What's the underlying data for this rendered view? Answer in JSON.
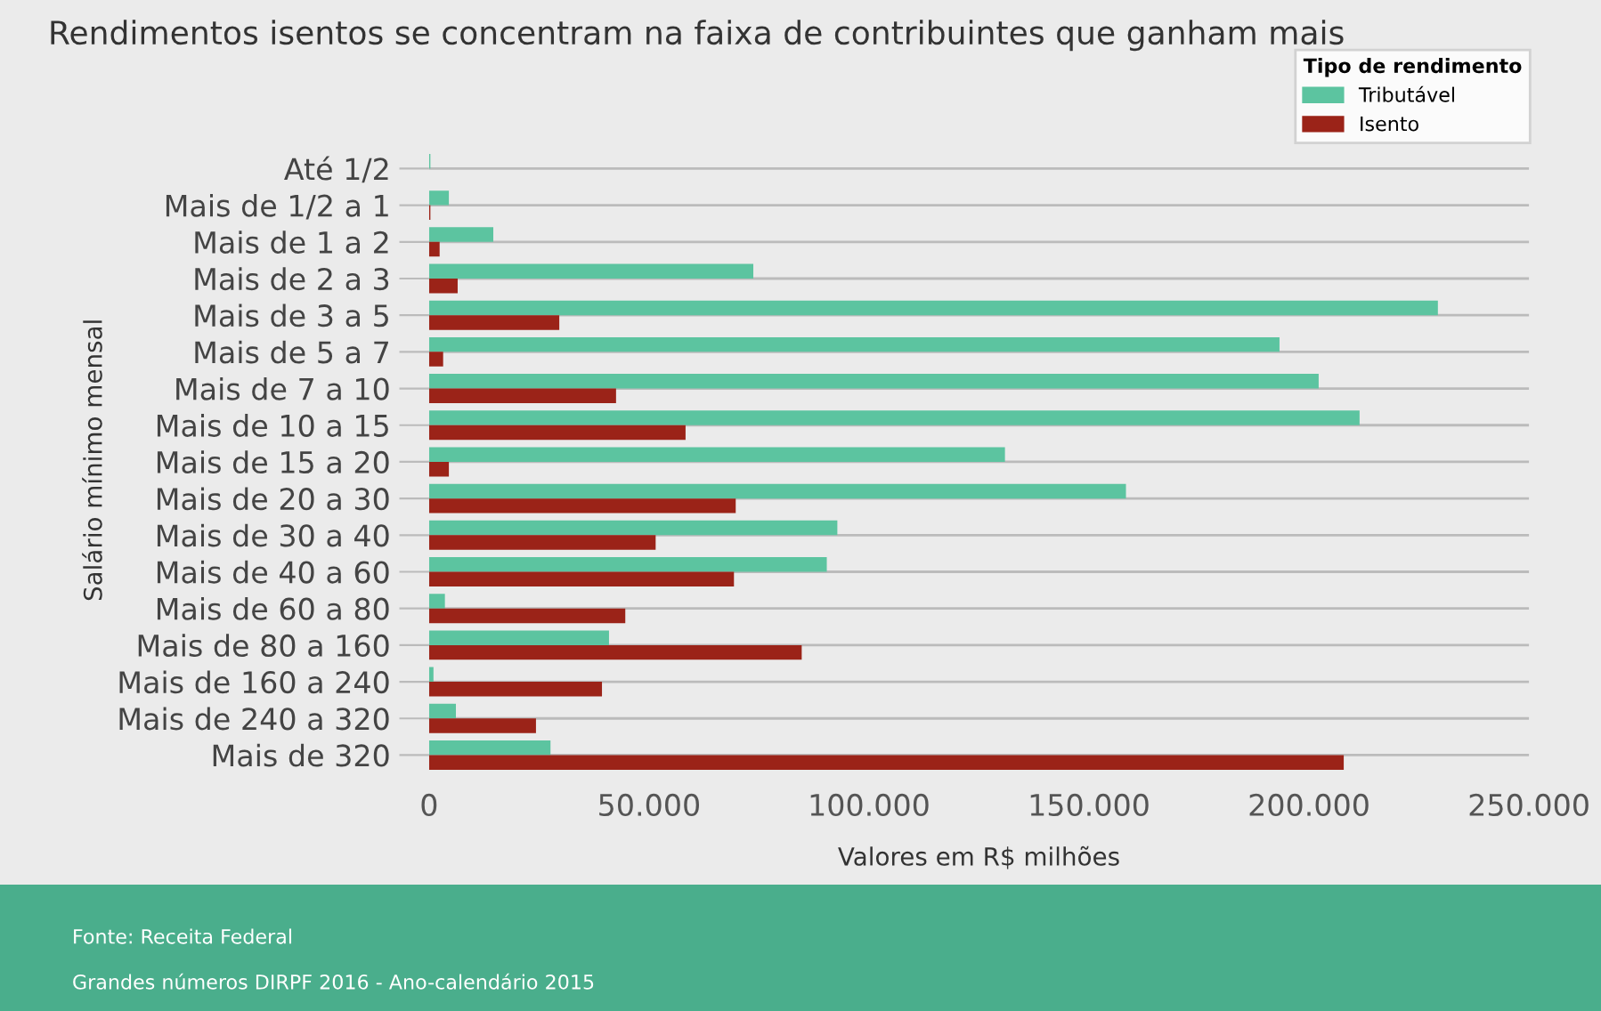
{
  "chart_data": {
    "type": "bar",
    "orientation": "horizontal",
    "title": "Rendimentos isentos se concentram na faixa de contribuintes que ganham mais",
    "xlabel": "Valores em R$ milhões",
    "ylabel": "Salário mínimo mensal",
    "legend_title": "Tipo de rendimento",
    "categories": [
      "Até 1/2",
      "Mais de 1/2 a 1",
      "Mais de 1 a 2",
      "Mais de 2 a 3",
      "Mais de 3 a 5",
      "Mais de 5 a 7",
      "Mais de 7 a 10",
      "Mais de 10 a 15",
      "Mais de 15 a 20",
      "Mais de 20 a 30",
      "Mais de 30 a 40",
      "Mais de 40 a 60",
      "Mais de 60 a 80",
      "Mais de 80 a 160",
      "Mais de 160 a 240",
      "Mais de 240 a 320",
      "Mais de 320"
    ],
    "series": [
      {
        "name": "Tributável",
        "color": "#5cc4a0",
        "values": [
          300,
          4500,
          14600,
          73700,
          229300,
          193300,
          202200,
          211500,
          130900,
          158400,
          92800,
          90400,
          3600,
          40900,
          1000,
          6100,
          27600
        ]
      },
      {
        "name": "Isento",
        "color": "#9b2318",
        "values": [
          null,
          300,
          2400,
          6500,
          29600,
          3200,
          42500,
          58300,
          4500,
          69700,
          51500,
          69300,
          44600,
          84700,
          39300,
          24300,
          207900
        ]
      }
    ],
    "xlim": [
      0,
      250000
    ],
    "xticks": [
      0,
      {
        "value": 50000,
        "label": "50.000"
      },
      {
        "value": 100000,
        "label": "100.000"
      },
      {
        "value": 150000,
        "label": "150.000"
      },
      {
        "value": 200000,
        "label": "200.000"
      },
      {
        "value": 250000,
        "label": "250.000"
      }
    ],
    "grid": "y",
    "legend": "top right",
    "annotations": [
      "Fonte: Receita Federal",
      "Grandes números DIRPF 2016 - Ano-calendário 2015"
    ]
  }
}
